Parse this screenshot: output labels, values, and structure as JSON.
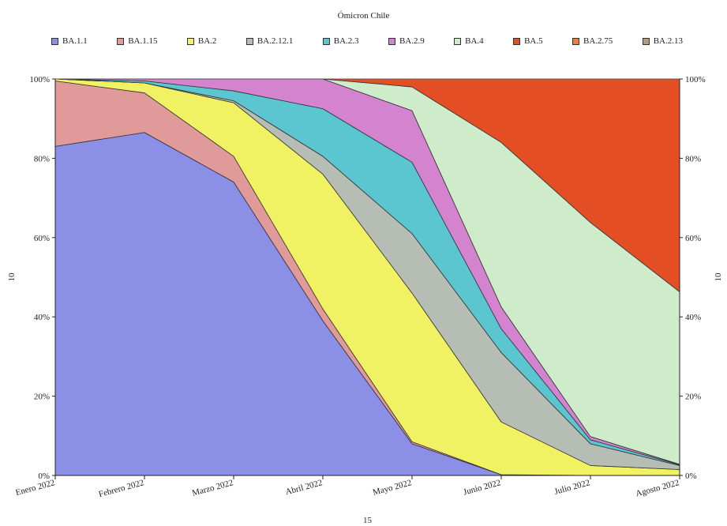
{
  "chart_data": {
    "type": "area",
    "stacked": true,
    "percent": true,
    "title": "Ómicron Chile",
    "xlabel": "15",
    "ylabel": "10",
    "y2label": "10",
    "ylim": [
      0,
      100
    ],
    "yticks": [
      "0%",
      "20%",
      "40%",
      "60%",
      "80%",
      "100%"
    ],
    "categories": [
      "Enero 2022",
      "Febrero 2022",
      "Marzo 2022",
      "Abril 2022",
      "Mayo 2022",
      "Junio 2022",
      "Julio 2022",
      "Agosto 2022"
    ],
    "legend_position": "top",
    "series": [
      {
        "name": "BA.1.1",
        "color": "#8c8fe6",
        "values": [
          83,
          86.5,
          74,
          39,
          8,
          0.2,
          0,
          0
        ]
      },
      {
        "name": "BA.1.15",
        "color": "#e09a9a",
        "values": [
          16.5,
          10,
          6.5,
          3,
          0.5,
          0,
          0,
          0
        ]
      },
      {
        "name": "BA.2",
        "color": "#f1f263",
        "values": [
          0.5,
          2.5,
          13.5,
          34,
          37.5,
          13.3,
          2.5,
          1.5
        ]
      },
      {
        "name": "BA.2.12.1",
        "color": "#b5bdb4",
        "values": [
          0,
          0,
          0.5,
          4.5,
          15,
          17.5,
          5.5,
          1
        ]
      },
      {
        "name": "BA.2.3",
        "color": "#5bc6cf",
        "values": [
          0,
          0.5,
          2.5,
          12,
          18,
          6,
          1,
          0.2
        ]
      },
      {
        "name": "BA.2.9",
        "color": "#d484cf",
        "values": [
          0,
          0.5,
          3,
          7.5,
          13,
          5.5,
          0.8,
          0.1
        ]
      },
      {
        "name": "BA.4",
        "color": "#cfecca",
        "values": [
          0,
          0,
          0,
          0,
          6,
          41.5,
          54,
          43.5
        ]
      },
      {
        "name": "BA.5",
        "color": "#e34e25",
        "values": [
          0,
          0,
          0,
          0,
          2,
          16,
          36.2,
          53.7
        ]
      },
      {
        "name": "BA.2.75",
        "color": "#ee7c3a",
        "values": [
          0,
          0,
          0,
          0,
          0,
          0,
          0,
          0
        ]
      },
      {
        "name": "BA.2.13",
        "color": "#a8a180",
        "values": [
          0,
          0,
          0,
          0,
          0,
          0,
          0,
          0
        ]
      }
    ]
  }
}
